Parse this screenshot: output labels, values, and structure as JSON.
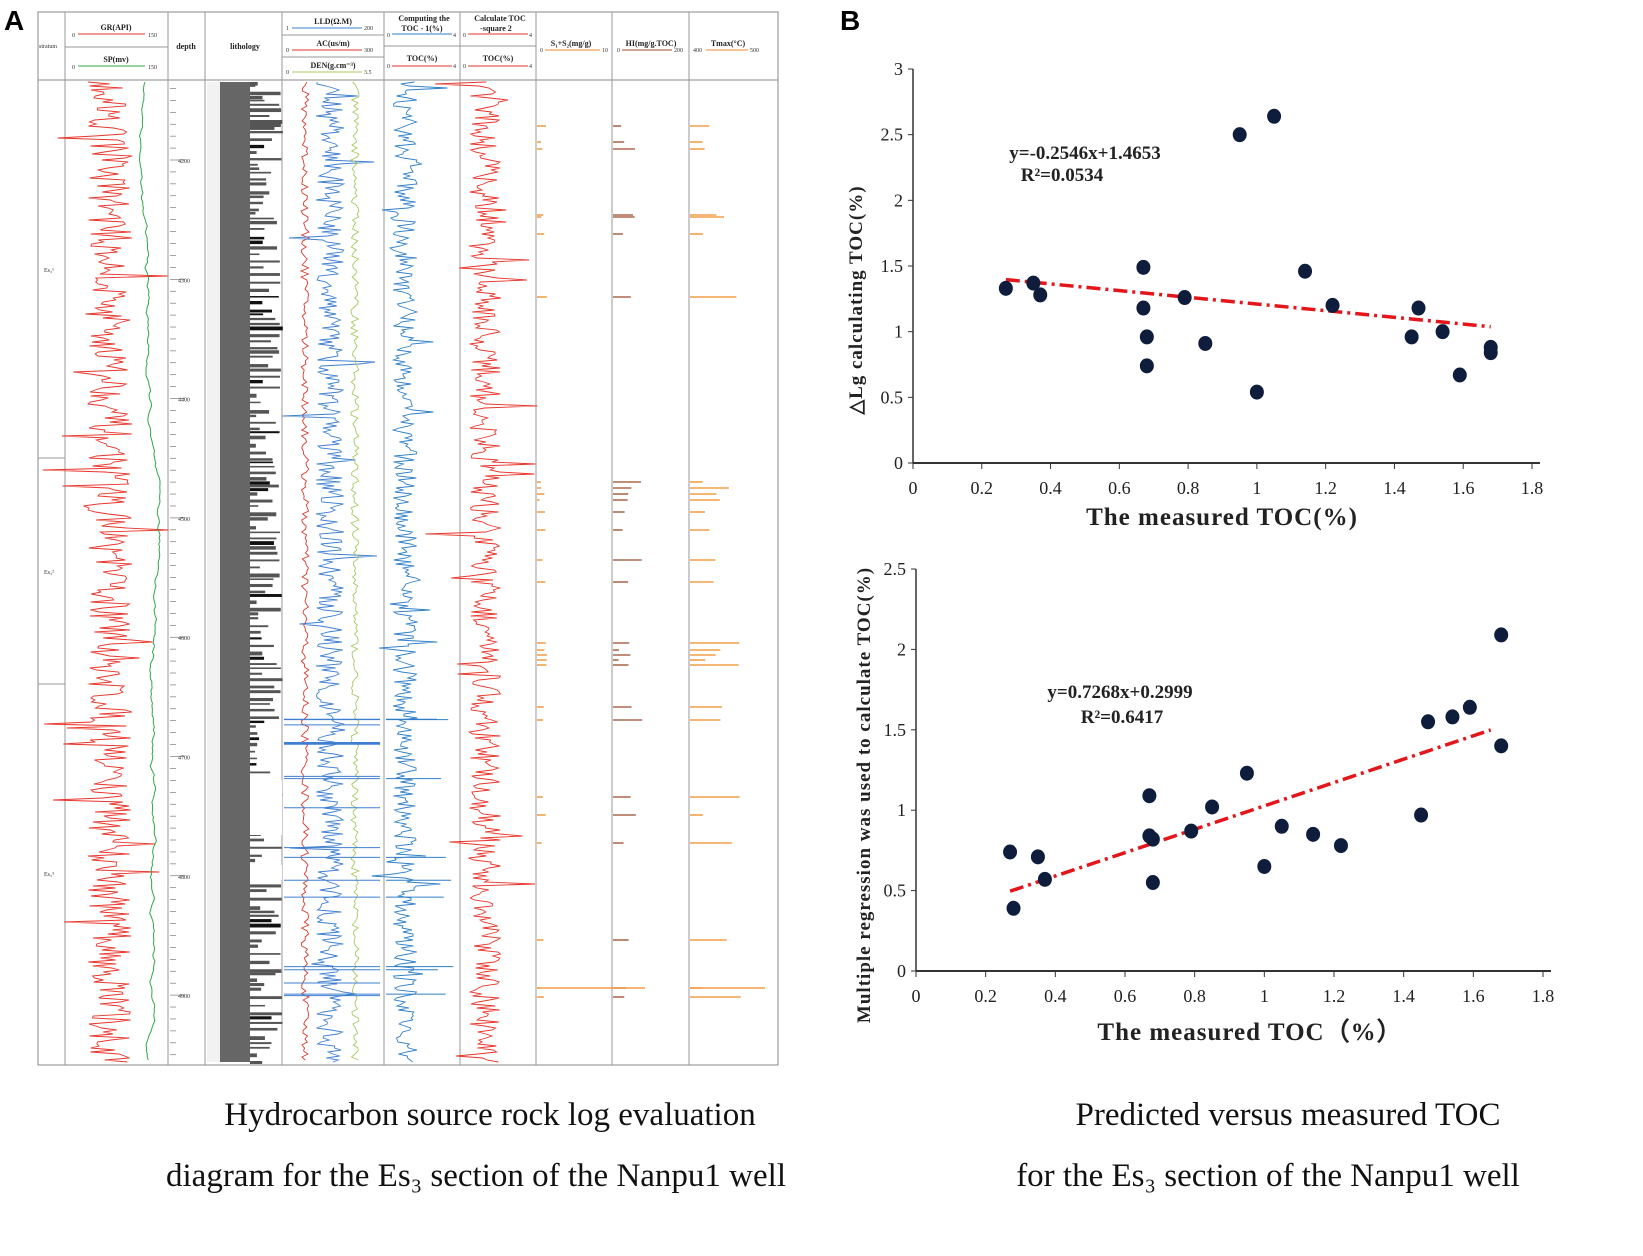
{
  "panels": {
    "a": "A",
    "b": "B"
  },
  "log": {
    "headers": {
      "stratum": "stratum",
      "gr": "GR(API)",
      "gr_min": "0",
      "gr_max": "150",
      "sp": "SP(mv)",
      "sp_min": "0",
      "sp_max": "150",
      "depth": "depth",
      "lithology": "lithology",
      "lld": "LLD(Ω.M)",
      "lld_min": "1",
      "lld_max": "200",
      "ac": "AC(us/m)",
      "ac_min": "0",
      "ac_max": "300",
      "den": "DEN(g.cm⁻³)",
      "den_min": "0",
      "den_max": "3.5",
      "toc1_line1": "Computing the",
      "toc1_line2": "TOC - 1(%)",
      "toc1_min": "0",
      "toc1_max": "4",
      "toc1_b": "TOC(%)",
      "toc1_b_min": "0",
      "toc1_b_max": "4",
      "toc2_line1": "Calculate TOC",
      "toc2_line2": "-square 2",
      "toc2_min": "0",
      "toc2_max": "4",
      "toc2_b": "TOC(%)",
      "toc2_b_min": "0",
      "toc2_b_max": "4",
      "s1s2": "S₁+S₂(mg/g)",
      "s1s2_min": "0",
      "s1s2_max": "10",
      "hi": "HI(mg/g.TOC)",
      "hi_min": "0",
      "hi_max": "200",
      "tmax": "Tmax(°C)",
      "tmax_min": "400",
      "tmax_max": "500"
    },
    "depth_ticks": [
      "4200",
      "4300",
      "4400",
      "4500",
      "4600",
      "4700",
      "4800",
      "4900"
    ],
    "strata": [
      "Es₃¹",
      "Es₃²",
      "Es₃³"
    ],
    "colors": {
      "gr": "#e8342a",
      "sp": "#2fa84a",
      "lld": "#d8392e",
      "ac": "#3f7fd0",
      "den": "#a8c860",
      "toc1": "#2f7fc8",
      "toc2": "#e8342a",
      "s1s2": "#f08a24",
      "hi": "#9a4a2a",
      "tmax": "#f08a24"
    }
  },
  "captions": {
    "a_line1": "Hydrocarbon source rock log evaluation",
    "a_line2": "diagram for the Es₃ section of the Nanpu1 well",
    "b_line1": "Predicted versus measured TOC",
    "b_line2": "for the Es₃ section of the Nanpu1 well"
  },
  "chart_data": [
    {
      "type": "scatter",
      "title": "",
      "xlabel": "The measured TOC(%)",
      "ylabel": "△Lg calculating TOC(%)",
      "xlim": [
        0,
        1.8
      ],
      "ylim": [
        0,
        3
      ],
      "xticks": [
        "0",
        "0.2",
        "0.4",
        "0.6",
        "0.8",
        "1",
        "1.2",
        "1.4",
        "1.6",
        "1.8"
      ],
      "yticks": [
        "0",
        "0.5",
        "1",
        "1.5",
        "2",
        "2.5",
        "3"
      ],
      "points": [
        [
          0.27,
          1.33
        ],
        [
          0.35,
          1.37
        ],
        [
          0.37,
          1.28
        ],
        [
          0.67,
          1.49
        ],
        [
          0.67,
          1.18
        ],
        [
          0.68,
          0.96
        ],
        [
          0.68,
          0.74
        ],
        [
          0.79,
          1.26
        ],
        [
          0.85,
          0.91
        ],
        [
          0.95,
          2.5
        ],
        [
          1.0,
          0.54
        ],
        [
          1.05,
          2.64
        ],
        [
          1.14,
          1.46
        ],
        [
          1.22,
          1.2
        ],
        [
          1.45,
          0.96
        ],
        [
          1.47,
          1.18
        ],
        [
          1.54,
          1.0
        ],
        [
          1.59,
          0.67
        ],
        [
          1.68,
          0.88
        ],
        [
          1.68,
          0.84
        ]
      ],
      "trendline": {
        "slope": -0.2546,
        "intercept": 1.4653,
        "x_range": [
          0.27,
          1.68
        ]
      },
      "equation": "y=-0.2546x+1.4653",
      "r2": "R²=0.0534",
      "point_color": "#0f1d3d",
      "trend_color": "#e3161b",
      "grid": false
    },
    {
      "type": "scatter",
      "title": "",
      "xlabel": "The measured TOC（%）",
      "ylabel": "Multiple regression was used to calculate TOC(%)",
      "xlim": [
        0,
        1.8
      ],
      "ylim": [
        0,
        2.5
      ],
      "xticks": [
        "0",
        "0.2",
        "0.4",
        "0.6",
        "0.8",
        "1",
        "1.2",
        "1.4",
        "1.6",
        "1.8"
      ],
      "yticks": [
        "0",
        "0.5",
        "1",
        "1.5",
        "2",
        "2.5"
      ],
      "points": [
        [
          0.27,
          0.74
        ],
        [
          0.28,
          0.39
        ],
        [
          0.35,
          0.71
        ],
        [
          0.37,
          0.57
        ],
        [
          0.67,
          1.09
        ],
        [
          0.67,
          0.84
        ],
        [
          0.68,
          0.82
        ],
        [
          0.68,
          0.55
        ],
        [
          0.79,
          0.87
        ],
        [
          0.85,
          1.02
        ],
        [
          0.95,
          1.23
        ],
        [
          1.0,
          0.65
        ],
        [
          1.05,
          0.9
        ],
        [
          1.14,
          0.85
        ],
        [
          1.22,
          0.78
        ],
        [
          1.45,
          0.97
        ],
        [
          1.47,
          1.55
        ],
        [
          1.54,
          1.58
        ],
        [
          1.59,
          1.64
        ],
        [
          1.68,
          2.09
        ],
        [
          1.68,
          1.4
        ]
      ],
      "trendline": {
        "slope": 0.7268,
        "intercept": 0.2999,
        "x_range": [
          0.27,
          1.65
        ]
      },
      "equation": "y=0.7268x+0.2999",
      "r2": "R²=0.6417",
      "point_color": "#0f1d3d",
      "trend_color": "#e3161b",
      "grid": false
    }
  ]
}
